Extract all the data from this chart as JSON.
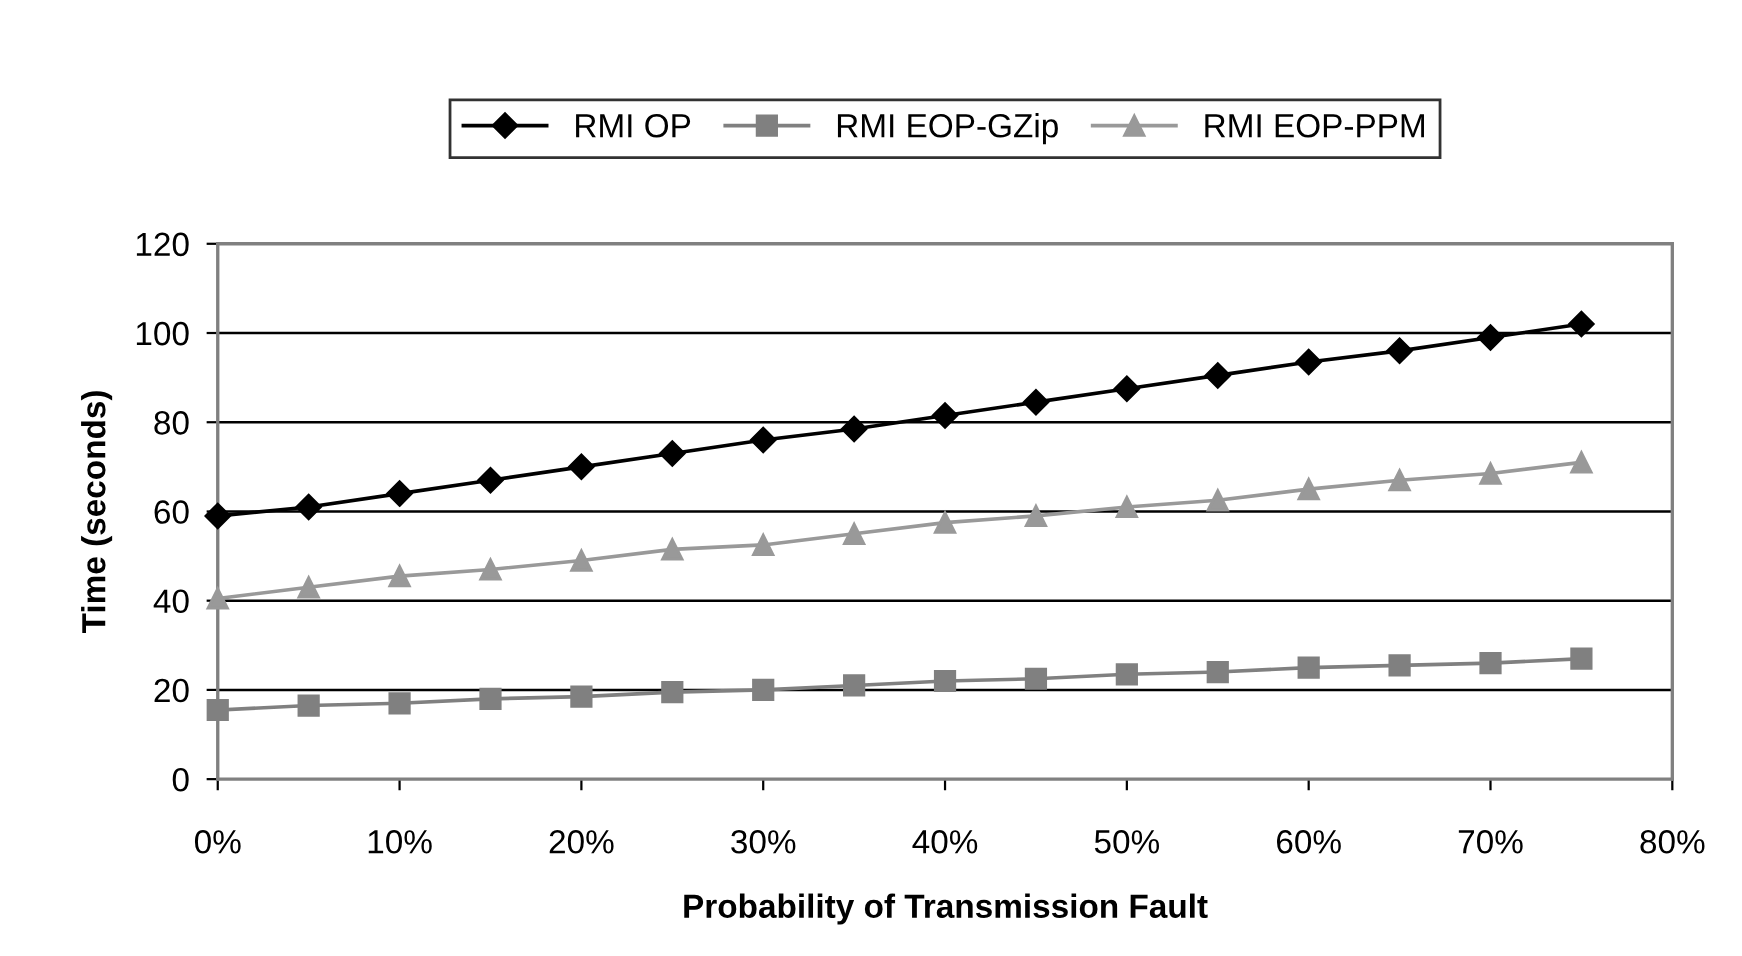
{
  "chart_data": {
    "type": "line",
    "xlabel": "Probability of Transmission Fault",
    "ylabel": "Time (seconds)",
    "x": [
      0,
      5,
      10,
      15,
      20,
      25,
      30,
      35,
      40,
      45,
      50,
      55,
      60,
      65,
      70,
      75
    ],
    "series": [
      {
        "name": "RMI OP",
        "color": "#000000",
        "marker": "diamond",
        "values": [
          59,
          61,
          64,
          67,
          70,
          73,
          76,
          78.5,
          81.5,
          84.5,
          87.5,
          90.5,
          93.5,
          96,
          99,
          102
        ]
      },
      {
        "name": "RMI EOP-GZip",
        "color": "#808080",
        "marker": "square",
        "values": [
          15.5,
          16.5,
          17,
          18,
          18.5,
          19.5,
          20,
          21,
          22,
          22.5,
          23.5,
          24,
          25,
          25.5,
          26,
          27
        ]
      },
      {
        "name": "RMI EOP-PPM",
        "color": "#999999",
        "marker": "triangle",
        "values": [
          40.5,
          43,
          45.5,
          47,
          49,
          51.5,
          52.5,
          55,
          57.5,
          59,
          61,
          62.5,
          65,
          67,
          68.5,
          71
        ]
      }
    ],
    "xlim": [
      0,
      80
    ],
    "xticks": [
      {
        "value": 0,
        "label": "0%"
      },
      {
        "value": 10,
        "label": "10%"
      },
      {
        "value": 20,
        "label": "20%"
      },
      {
        "value": 30,
        "label": "30%"
      },
      {
        "value": 40,
        "label": "40%"
      },
      {
        "value": 50,
        "label": "50%"
      },
      {
        "value": 60,
        "label": "60%"
      },
      {
        "value": 70,
        "label": "70%"
      },
      {
        "value": 80,
        "label": "80%"
      }
    ],
    "ylim": [
      0,
      120
    ],
    "yticks": [
      0,
      20,
      40,
      60,
      80,
      100,
      120
    ],
    "grid": "y",
    "legend": "top",
    "line_style": "solid"
  }
}
